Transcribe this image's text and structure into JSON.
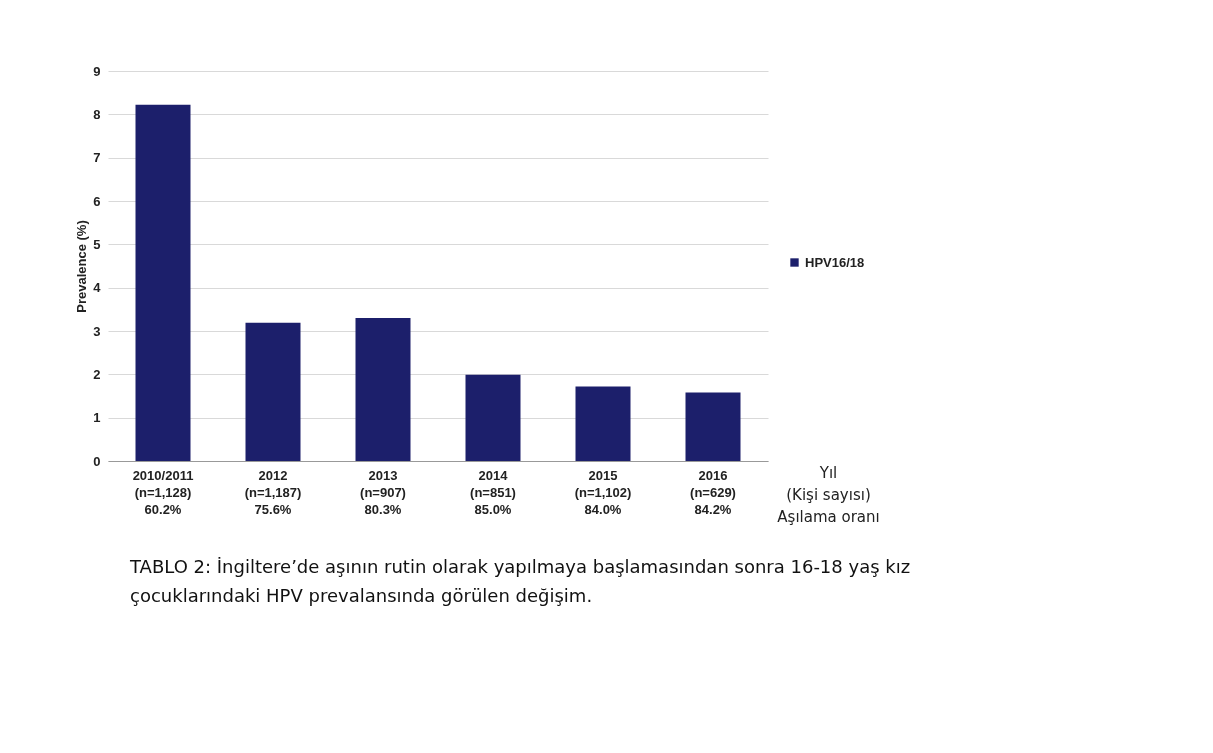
{
  "chart_data": {
    "type": "bar",
    "ylabel": "Prevalence (%)",
    "xlabel": "Yıl\n(Kişi sayısı)\nAşılama oranı",
    "categories": [
      "2010/2011\n(n=1,128)\n60.2%",
      "2012\n(n=1,187)\n75.6%",
      "2013\n(n=907)\n80.3%",
      "2014\n(n=851)\n85.0%",
      "2015\n(n=1,102)\n84.0%",
      "2016\n(n=629)\n84.2%"
    ],
    "series": [
      {
        "name": "HPV16/18",
        "color": "#1c1f6b",
        "values": [
          8.22,
          3.19,
          3.3,
          1.99,
          1.72,
          1.58
        ]
      }
    ],
    "ylim": [
      0,
      9
    ],
    "yticks": [
      0,
      1,
      2,
      3,
      4,
      5,
      6,
      7,
      8,
      9
    ],
    "grid": "y",
    "legend": "right",
    "annotations": [
      "TABLO 2: İngiltere’de aşının rutin olarak yapılmaya başlamasından sonra 16-18 yaş kız çocuklarındaki HPV prevalansında görülen değişim."
    ]
  }
}
